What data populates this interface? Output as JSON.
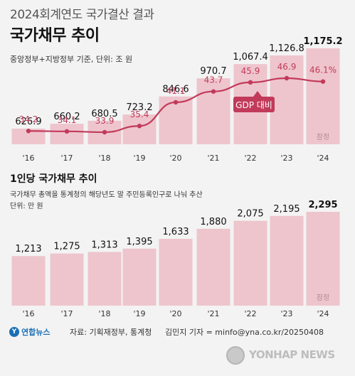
{
  "header": {
    "supertitle": "2024회계연도 국가결산 결과",
    "title": "국가채무 추이",
    "unit_note": "중앙정부+지방정부 기준, 단위: 조 원"
  },
  "section2": {
    "title": "1인당 국가채무 추이",
    "note": "국가채무 총액을 통계청의 해당년도 말 주민등록인구로 나눠 추산",
    "unit": "단위: 만 원"
  },
  "colors": {
    "bar": "#eec5cd",
    "highlight": "#c23a5a",
    "line": "#c23a5a",
    "background": "#f3f3f3"
  },
  "footer": {
    "logo_text": "연합뉴스",
    "source": "자료: 기획재정부, 통계청",
    "credit": "김민지 기자 = minfo@yna.co.kr/20250408",
    "watermark": "YONHAP NEWS"
  },
  "chart_data": [
    {
      "type": "bar",
      "categories": [
        "'16",
        "'17",
        "'18",
        "'19",
        "'20",
        "'21",
        "'22",
        "'23",
        "'24"
      ],
      "series": [
        {
          "values": [
            626.9,
            660.2,
            680.5,
            723.2,
            846.6,
            970.7,
            1067.4,
            1126.8,
            1175.2
          ],
          "labels": [
            "626.9",
            "660.2",
            "680.5",
            "723.2",
            "846.6",
            "970.7",
            "1,067.4",
            "1,126.8",
            "1,175.2"
          ]
        }
      ],
      "line_series": {
        "name": "GDP 대비",
        "values": [
          34.2,
          34.1,
          33.9,
          35.4,
          41.1,
          43.7,
          45.9,
          46.9,
          46.1
        ],
        "labels": [
          "34.2",
          "34.1",
          "33.9",
          "35.4",
          "41.1",
          "43.7",
          "45.9",
          "46.9",
          "46.1%"
        ]
      },
      "annotation": "잠정",
      "grid": false
    },
    {
      "type": "bar",
      "categories": [
        "'16",
        "'17",
        "'18",
        "'19",
        "'20",
        "'21",
        "'22",
        "'23",
        "'24"
      ],
      "series": [
        {
          "values": [
            1213,
            1275,
            1313,
            1395,
            1633,
            1880,
            2075,
            2195,
            2295
          ],
          "labels": [
            "1,213",
            "1,275",
            "1,313",
            "1,395",
            "1,633",
            "1,880",
            "2,075",
            "2,195",
            "2,295"
          ]
        }
      ],
      "annotation": "잠정",
      "grid": false
    }
  ]
}
